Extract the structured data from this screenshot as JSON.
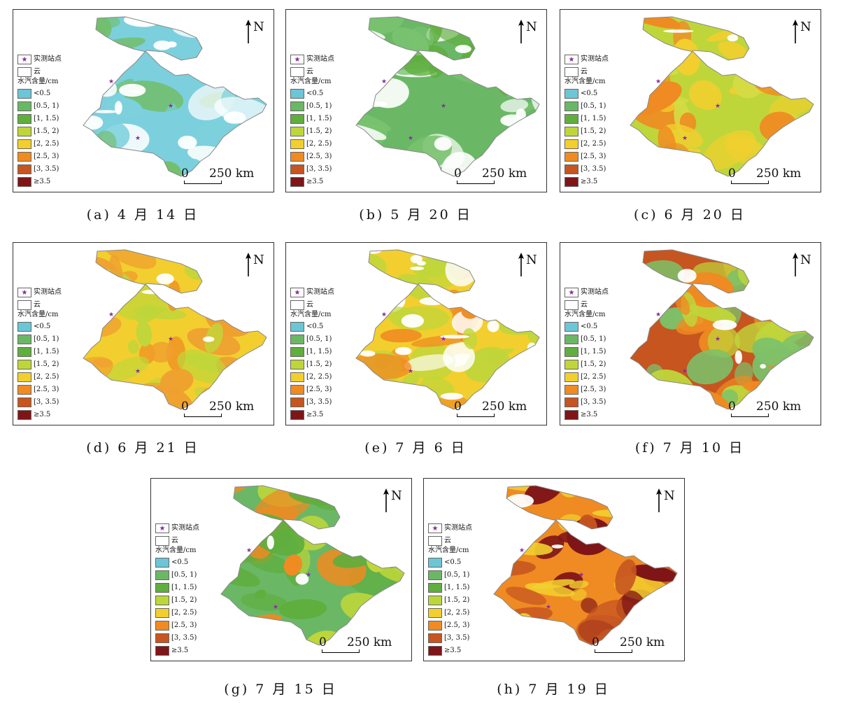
{
  "legend": {
    "station": "实测站点",
    "cloud": "云",
    "title": "水汽含量/cm",
    "classes": [
      {
        "label": "<0.5",
        "color": "#6cc6d6"
      },
      {
        "label": "[0.5, 1)",
        "color": "#6ab865"
      },
      {
        "label": "[1, 1.5)",
        "color": "#5fae3e"
      },
      {
        "label": "[1.5, 2)",
        "color": "#bfd63a"
      },
      {
        "label": "[2, 2.5)",
        "color": "#f2cf2e"
      },
      {
        "label": "[2.5, 3)",
        "color": "#ef8b22"
      },
      {
        "label": "[3, 3.5)",
        "color": "#c65520"
      },
      {
        "label": "≥3.5",
        "color": "#7f1517"
      }
    ],
    "station_color": "#8a2ba0"
  },
  "north_label": "N",
  "scale": {
    "zero": "0",
    "distance": "250 km"
  },
  "panels": [
    {
      "caption": "(a) 4 月 14 日",
      "colors": [
        "#7cd0dd",
        "#7cd0dd",
        "#72be6b",
        "#ffffff"
      ],
      "cloud": 0.25
    },
    {
      "caption": "(b) 5 月 20 日",
      "colors": [
        "#6ab865",
        "#79c270",
        "#5fae3e",
        "#ffffff"
      ],
      "cloud": 0.15
    },
    {
      "caption": "(c) 6 月 20 日",
      "colors": [
        "#bfd63a",
        "#d4dc45",
        "#f2cf2e",
        "#ef8b22"
      ],
      "cloud": 0.1
    },
    {
      "caption": "(d) 6 月 21 日",
      "colors": [
        "#f2cf2e",
        "#ef9f30",
        "#ef8b22",
        "#bfd63a"
      ],
      "cloud": 0.12
    },
    {
      "caption": "(e) 7 月 6 日",
      "colors": [
        "#f2cf2e",
        "#bfd63a",
        "#ef8b22",
        "#ffffff"
      ],
      "cloud": 0.3
    },
    {
      "caption": "(f) 7 月 10 日",
      "colors": [
        "#c65520",
        "#ef8b22",
        "#7cc26a",
        "#bfd63a"
      ],
      "cloud": 0.08
    },
    {
      "caption": "(g) 7 月 15 日",
      "colors": [
        "#6ab865",
        "#bfd63a",
        "#5fae3e",
        "#ef8b22"
      ],
      "cloud": 0.08
    },
    {
      "caption": "(h) 7 月 19 日",
      "colors": [
        "#ef8b22",
        "#f2cf2e",
        "#7f1517",
        "#c65520"
      ],
      "cloud": 0.05
    }
  ]
}
